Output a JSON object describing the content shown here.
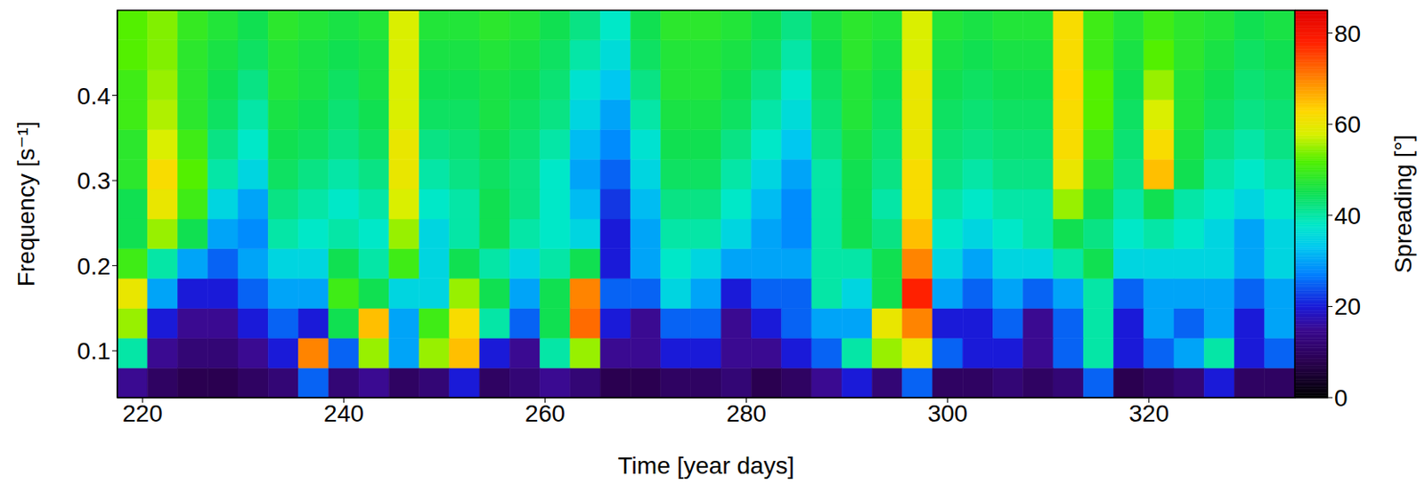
{
  "chart_data": {
    "type": "heatmap",
    "x_label": "Time [year days]",
    "y_label": "Frequency [s⁻¹]",
    "xlim": [
      217.5,
      334.5
    ],
    "xticks": [
      220,
      240,
      260,
      280,
      300,
      320
    ],
    "ylim": [
      0.045,
      0.5
    ],
    "yticks": [
      0.1,
      0.2,
      0.3,
      0.4
    ],
    "x": [
      219,
      222,
      225,
      228,
      231,
      234,
      237,
      240,
      243,
      246,
      249,
      252,
      255,
      258,
      261,
      264,
      267,
      270,
      273,
      276,
      279,
      282,
      285,
      288,
      291,
      294,
      297,
      300,
      303,
      306,
      309,
      312,
      315,
      318,
      321,
      324,
      327,
      330,
      333
    ],
    "y": [
      0.0625,
      0.0975,
      0.1325,
      0.1675,
      0.2025,
      0.2375,
      0.2725,
      0.3075,
      0.3425,
      0.3775,
      0.4125,
      0.4475,
      0.4825
    ],
    "values": [
      [
        15,
        10,
        8,
        8,
        10,
        12,
        25,
        12,
        15,
        10,
        12,
        20,
        10,
        12,
        15,
        12,
        8,
        8,
        10,
        10,
        12,
        8,
        10,
        15,
        20,
        12,
        25,
        10,
        10,
        12,
        10,
        12,
        25,
        8,
        10,
        12,
        20,
        10,
        10
      ],
      [
        40,
        15,
        12,
        12,
        15,
        20,
        70,
        25,
        55,
        30,
        55,
        65,
        20,
        15,
        40,
        55,
        15,
        15,
        20,
        20,
        15,
        15,
        20,
        25,
        40,
        55,
        60,
        25,
        20,
        20,
        15,
        25,
        40,
        20,
        25,
        30,
        40,
        20,
        25
      ],
      [
        55,
        20,
        15,
        15,
        20,
        25,
        20,
        45,
        65,
        30,
        50,
        62,
        40,
        25,
        45,
        72,
        20,
        15,
        25,
        25,
        15,
        20,
        25,
        30,
        30,
        60,
        70,
        20,
        20,
        25,
        15,
        25,
        40,
        20,
        30,
        25,
        30,
        20,
        30
      ],
      [
        60,
        30,
        20,
        20,
        25,
        30,
        30,
        50,
        45,
        35,
        35,
        55,
        45,
        30,
        45,
        70,
        25,
        25,
        35,
        30,
        20,
        25,
        25,
        40,
        35,
        45,
        78,
        30,
        25,
        30,
        25,
        30,
        40,
        25,
        30,
        30,
        30,
        25,
        30
      ],
      [
        50,
        40,
        30,
        25,
        30,
        35,
        35,
        45,
        40,
        50,
        35,
        45,
        40,
        35,
        40,
        45,
        20,
        30,
        38,
        35,
        30,
        30,
        30,
        40,
        40,
        45,
        70,
        35,
        30,
        35,
        35,
        40,
        45,
        35,
        35,
        35,
        35,
        30,
        35
      ],
      [
        45,
        55,
        45,
        30,
        28,
        40,
        38,
        40,
        38,
        55,
        35,
        40,
        45,
        40,
        38,
        35,
        20,
        30,
        40,
        40,
        35,
        30,
        28,
        40,
        45,
        42,
        65,
        38,
        35,
        38,
        40,
        45,
        42,
        38,
        40,
        38,
        35,
        30,
        35
      ],
      [
        45,
        60,
        50,
        35,
        30,
        42,
        40,
        38,
        40,
        58,
        38,
        40,
        45,
        42,
        38,
        32,
        22,
        32,
        42,
        42,
        38,
        32,
        28,
        40,
        45,
        40,
        62,
        40,
        38,
        40,
        40,
        55,
        45,
        40,
        45,
        40,
        38,
        35,
        38
      ],
      [
        48,
        62,
        52,
        40,
        35,
        44,
        42,
        40,
        42,
        60,
        40,
        42,
        44,
        42,
        38,
        30,
        25,
        35,
        44,
        44,
        40,
        35,
        30,
        40,
        45,
        42,
        62,
        42,
        40,
        42,
        42,
        60,
        48,
        42,
        65,
        45,
        40,
        38,
        40
      ],
      [
        48,
        58,
        50,
        42,
        38,
        45,
        44,
        42,
        44,
        60,
        42,
        43,
        45,
        43,
        40,
        32,
        28,
        37,
        45,
        45,
        42,
        38,
        33,
        42,
        46,
        43,
        60,
        43,
        42,
        43,
        43,
        62,
        50,
        43,
        62,
        46,
        42,
        40,
        42
      ],
      [
        50,
        56,
        48,
        44,
        40,
        46,
        45,
        43,
        45,
        58,
        44,
        44,
        46,
        44,
        42,
        35,
        30,
        40,
        46,
        46,
        44,
        40,
        36,
        43,
        47,
        44,
        60,
        44,
        43,
        44,
        44,
        62,
        52,
        44,
        58,
        47,
        44,
        42,
        43
      ],
      [
        50,
        55,
        48,
        45,
        42,
        47,
        46,
        44,
        46,
        58,
        45,
        45,
        46,
        45,
        43,
        37,
        33,
        42,
        47,
        47,
        45,
        42,
        38,
        44,
        47,
        45,
        60,
        45,
        44,
        45,
        45,
        63,
        52,
        45,
        55,
        47,
        45,
        43,
        44
      ],
      [
        52,
        54,
        48,
        46,
        44,
        47,
        46,
        45,
        46,
        58,
        46,
        46,
        47,
        46,
        44,
        40,
        36,
        44,
        47,
        47,
        46,
        44,
        40,
        45,
        48,
        46,
        58,
        46,
        45,
        46,
        46,
        62,
        50,
        46,
        52,
        48,
        46,
        44,
        45
      ],
      [
        52,
        54,
        49,
        47,
        45,
        48,
        47,
        46,
        47,
        58,
        47,
        47,
        48,
        47,
        45,
        42,
        38,
        45,
        48,
        48,
        47,
        45,
        42,
        46,
        48,
        47,
        58,
        47,
        46,
        47,
        47,
        62,
        50,
        47,
        50,
        48,
        47,
        45,
        46
      ]
    ],
    "colorbar": {
      "label": "Spreading [°]",
      "range": [
        0,
        85
      ],
      "ticks": [
        0,
        20,
        40,
        60,
        80
      ]
    }
  }
}
